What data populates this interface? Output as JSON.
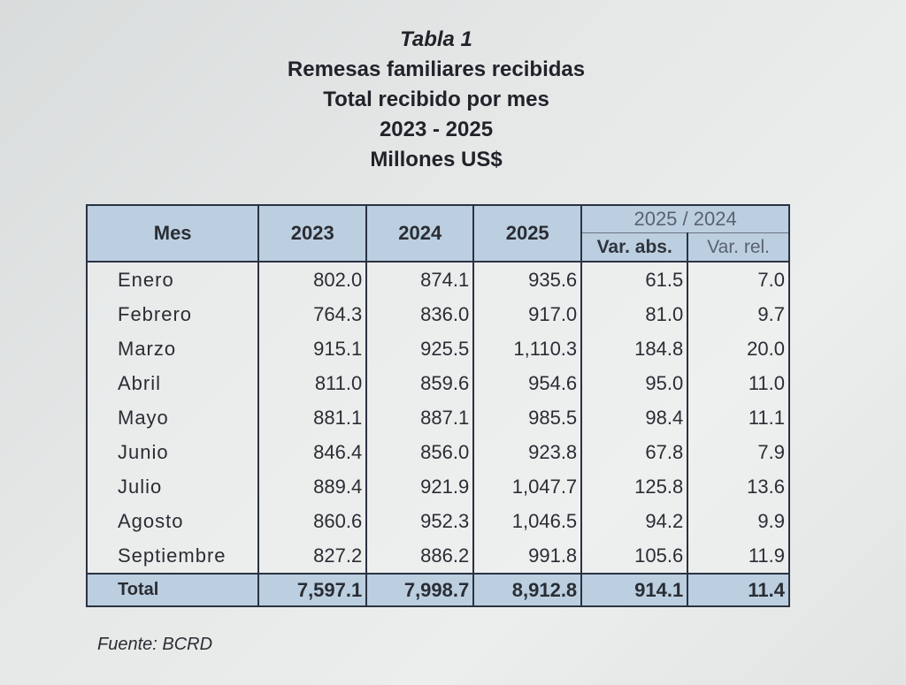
{
  "titles": [
    "Tabla 1",
    "Remesas familiares recibidas",
    "Total recibido por mes",
    "2023 - 2025",
    "Millones US$"
  ],
  "table": {
    "headers": {
      "month": "Mes",
      "y2023": "2023",
      "y2024": "2024",
      "y2025": "2025",
      "group": "2025 / 2024",
      "var_abs": "Var. abs.",
      "var_rel": "Var. rel."
    },
    "rows": [
      [
        "Enero",
        "802.0",
        "874.1",
        "935.6",
        "61.5",
        "7.0"
      ],
      [
        "Febrero",
        "764.3",
        "836.0",
        "917.0",
        "81.0",
        "9.7"
      ],
      [
        "Marzo",
        "915.1",
        "925.5",
        "1,110.3",
        "184.8",
        "20.0"
      ],
      [
        "Abril",
        "811.0",
        "859.6",
        "954.6",
        "95.0",
        "11.0"
      ],
      [
        "Mayo",
        "881.1",
        "887.1",
        "985.5",
        "98.4",
        "11.1"
      ],
      [
        "Junio",
        "846.4",
        "856.0",
        "923.8",
        "67.8",
        "7.9"
      ],
      [
        "Julio",
        "889.4",
        "921.9",
        "1,047.7",
        "125.8",
        "13.6"
      ],
      [
        "Agosto",
        "860.6",
        "952.3",
        "1,046.5",
        "94.2",
        "9.9"
      ],
      [
        "Septiembre",
        "827.2",
        "886.2",
        "991.8",
        "105.6",
        "11.9"
      ]
    ],
    "total": [
      "Total",
      "7,597.1",
      "7,998.7",
      "8,912.8",
      "914.1",
      "11.4"
    ]
  },
  "source": "Fuente: BCRD"
}
